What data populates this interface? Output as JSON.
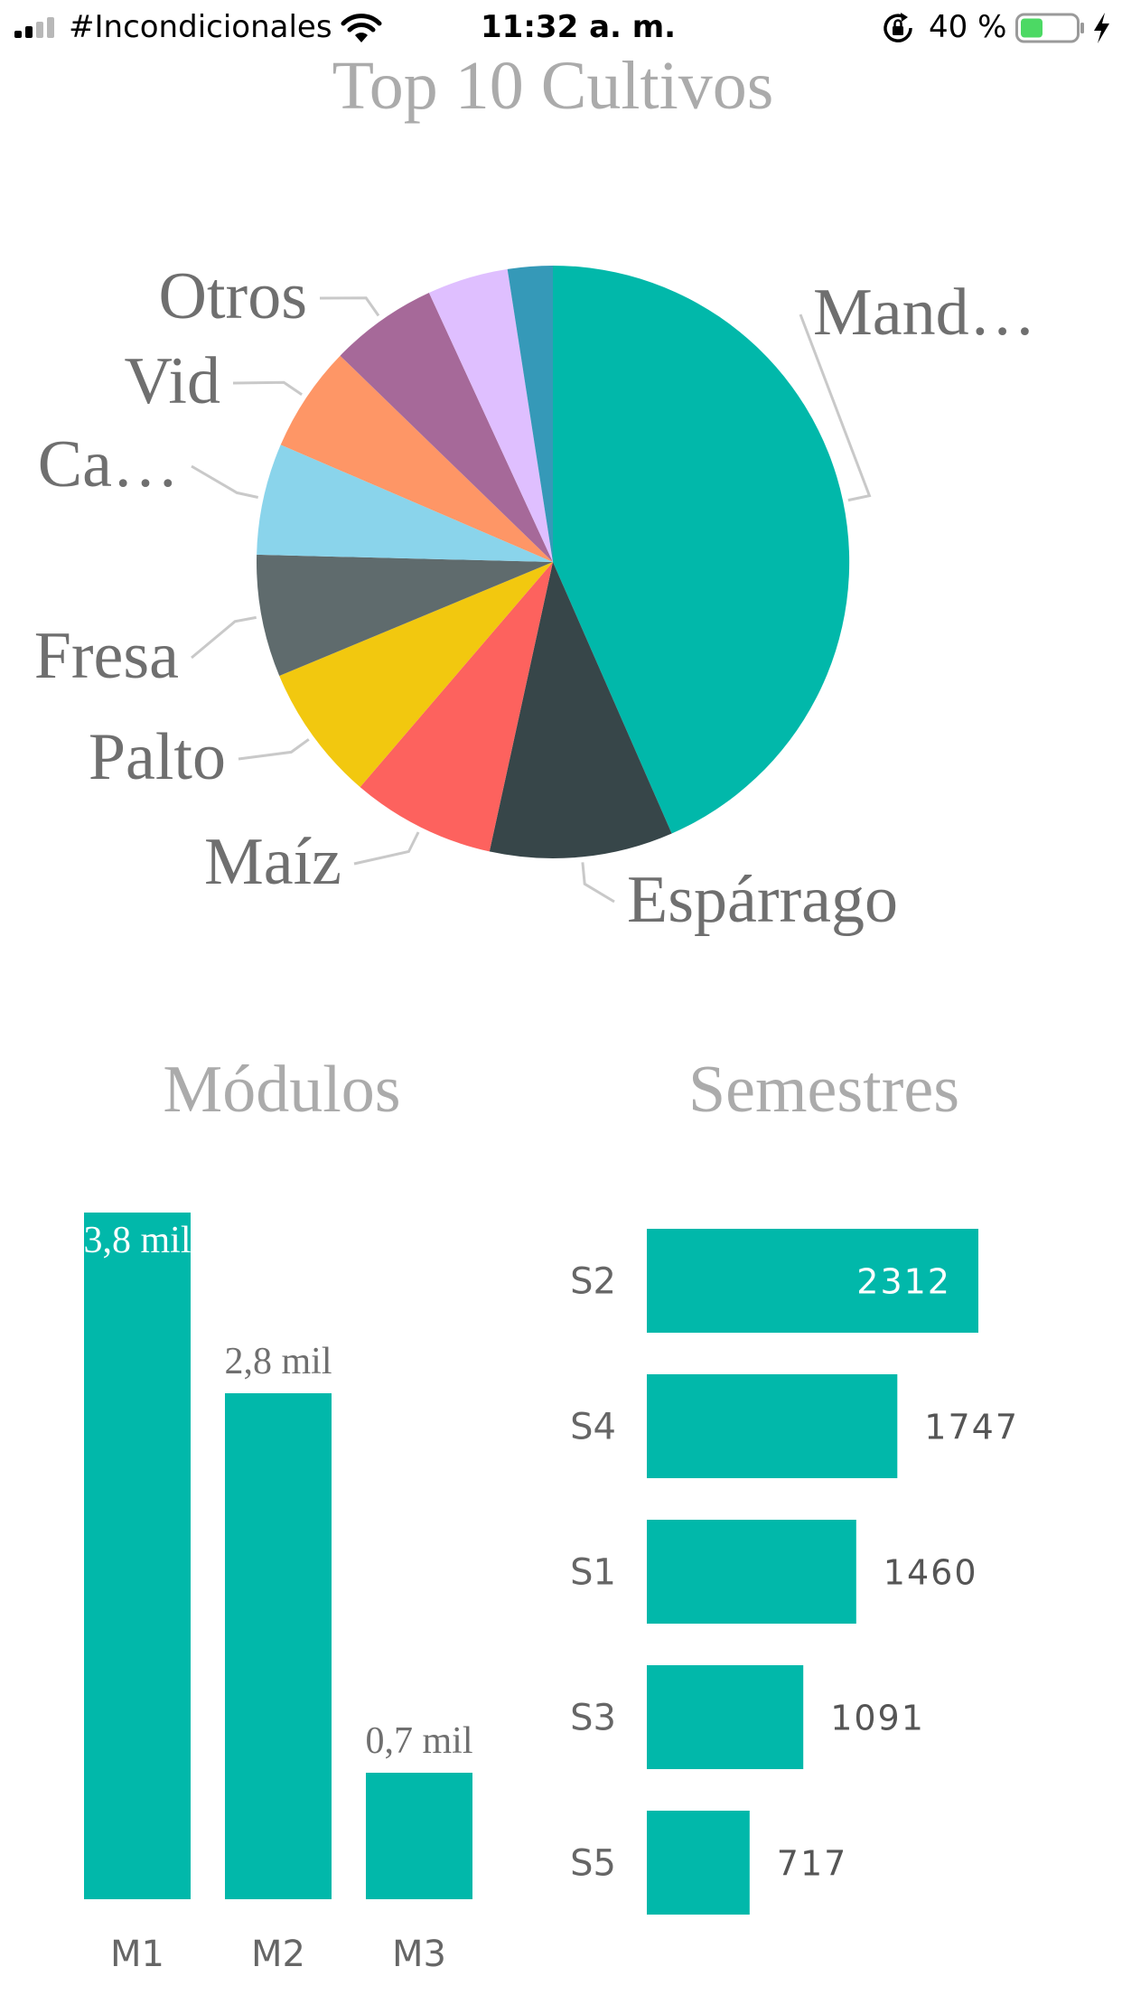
{
  "status_bar": {
    "carrier": "#Incondicionales",
    "time": "11:32 a. m.",
    "battery": "40 %",
    "signal_bars": 4,
    "signal_strength": 2,
    "battery_level": 0.4,
    "icons": [
      "signal-icon",
      "wifi-icon",
      "rotation-lock-icon",
      "battery-icon",
      "charging-bolt-icon"
    ]
  },
  "chart_data": [
    {
      "type": "pie",
      "title": "Top 10 Cultivos",
      "slices": [
        {
          "label": "Mand…",
          "value": 44.3,
          "color": "#01B8AA"
        },
        {
          "label": "Espárrago",
          "value": 10.2,
          "color": "#374649"
        },
        {
          "label": "Maíz",
          "value": 8.0,
          "color": "#FD625E"
        },
        {
          "label": "Palto",
          "value": 7.6,
          "color": "#F2C80F"
        },
        {
          "label": "Fresa",
          "value": 6.8,
          "color": "#5F6B6D"
        },
        {
          "label": "Ca…",
          "value": 6.2,
          "color": "#8AD4EB"
        },
        {
          "label": "Vid",
          "value": 5.9,
          "color": "#FE9666"
        },
        {
          "label": "Otros",
          "value": 6.0,
          "color": "#A66999"
        },
        {
          "label": "",
          "value": 4.5,
          "color": "#DFBFFF"
        },
        {
          "label": "",
          "value": 2.5,
          "color": "#3599B8"
        }
      ]
    },
    {
      "type": "bar",
      "title": "Módulos",
      "categories": [
        "M1",
        "M2",
        "M3"
      ],
      "values": [
        3.8,
        2.8,
        0.7
      ],
      "data_labels": [
        "3,8 mil",
        "2,8 mil",
        "0,7 mil"
      ],
      "unit": "mil",
      "ylim": [
        0,
        3.8
      ],
      "color": "#01B8AA",
      "grid": false
    },
    {
      "type": "bar",
      "orientation": "horizontal",
      "title": "Semestres",
      "categories": [
        "S2",
        "S4",
        "S1",
        "S3",
        "S5"
      ],
      "values": [
        2312,
        1747,
        1460,
        1091,
        717
      ],
      "xlim": [
        0,
        2312
      ],
      "color": "#01B8AA",
      "grid": false
    }
  ]
}
